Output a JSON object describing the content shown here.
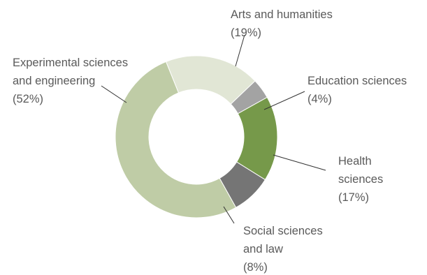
{
  "chart_data": {
    "type": "pie",
    "title": "",
    "slices": [
      {
        "name": "Arts and humanities",
        "value": 19,
        "pct_label": "(19%)",
        "color": "#e1e6d5"
      },
      {
        "name": "Education sciences",
        "value": 4,
        "pct_label": "(4%)",
        "color": "#a3a3a3"
      },
      {
        "name": "Health sciences",
        "value": 17,
        "pct_label": "(17%)",
        "color": "#76994a"
      },
      {
        "name": "Social sciences and law",
        "value": 8,
        "pct_label": "(8%)",
        "color": "#757575"
      },
      {
        "name": "Experimental sciences and engineering",
        "value": 52,
        "pct_label": "(52%)",
        "color": "#bfcca6"
      }
    ],
    "labels": {
      "arts": [
        "Arts and humanities",
        "(19%)"
      ],
      "education": [
        "Education sciences",
        "(4%)"
      ],
      "health": [
        "Health",
        "sciences",
        "(17%)"
      ],
      "social": [
        "Social sciences",
        "and law",
        "(8%)"
      ],
      "experimental": [
        "Experimental sciences",
        "and engineering",
        "(52%)"
      ]
    }
  }
}
